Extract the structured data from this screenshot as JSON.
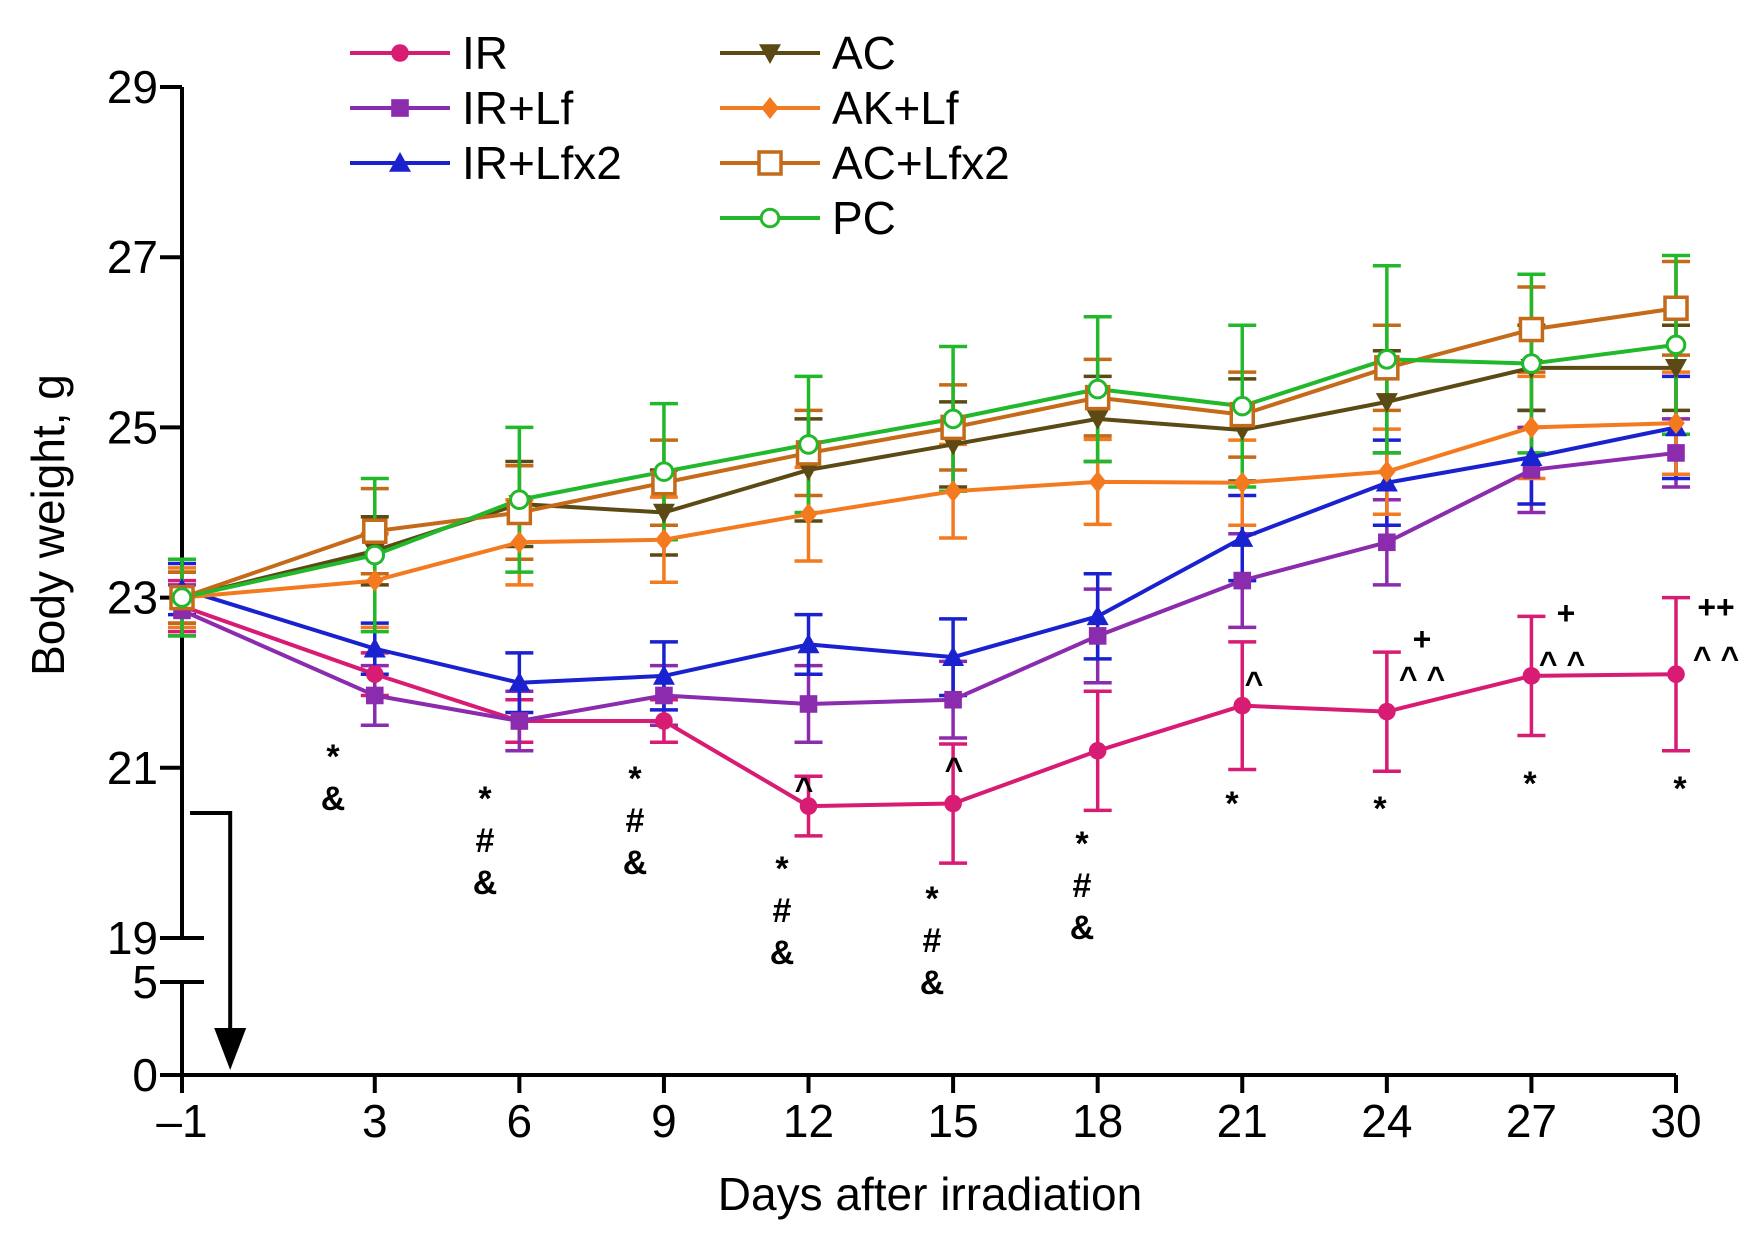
{
  "chart_data": {
    "type": "line",
    "xlabel": "Days after irradiation",
    "ylabel": "Body weight, g",
    "x": [
      -1,
      3,
      6,
      9,
      12,
      15,
      18,
      21,
      24,
      27,
      30
    ],
    "x_tick_labels": [
      "–1",
      "3",
      "6",
      "9",
      "12",
      "15",
      "18",
      "21",
      "24",
      "27",
      "30"
    ],
    "y_upper_ticks": [
      "19",
      "21",
      "23",
      "25",
      "27",
      "29"
    ],
    "y_lower_ticks": [
      "0",
      "5"
    ],
    "y_upper_range": [
      19,
      29
    ],
    "y_lower_range": [
      0,
      5
    ],
    "axis_break": "between 5 and 19",
    "arrow_at_x": 0,
    "grid": false,
    "legend_position": "top",
    "series": [
      {
        "name": "IR",
        "color": "#D81B73",
        "marker": "filled-circle",
        "values": [
          22.9,
          22.1,
          21.55,
          21.55,
          20.55,
          20.58,
          21.2,
          21.73,
          21.66,
          22.08,
          22.1
        ],
        "errors": [
          0.3,
          0.25,
          0.25,
          0.25,
          0.35,
          0.7,
          0.7,
          0.75,
          0.7,
          0.7,
          0.9
        ]
      },
      {
        "name": "IR+Lf",
        "color": "#8B2BAE",
        "marker": "filled-square",
        "values": [
          22.85,
          21.85,
          21.55,
          21.85,
          21.75,
          21.8,
          22.55,
          23.2,
          23.65,
          24.5,
          24.7
        ],
        "errors": [
          0.3,
          0.35,
          0.35,
          0.35,
          0.45,
          0.45,
          0.55,
          0.55,
          0.5,
          0.5,
          0.4
        ]
      },
      {
        "name": "IR+Lfx2",
        "color": "#1A22D0",
        "marker": "filled-triangle",
        "values": [
          23.1,
          22.4,
          22.0,
          22.08,
          22.45,
          22.3,
          22.78,
          23.7,
          24.35,
          24.65,
          25.0
        ],
        "errors": [
          0.3,
          0.3,
          0.35,
          0.4,
          0.35,
          0.45,
          0.5,
          0.5,
          0.5,
          0.55,
          0.6
        ]
      },
      {
        "name": "AC",
        "color": "#5B4A14",
        "marker": "filled-down-triangle",
        "values": [
          23.0,
          23.55,
          24.1,
          24.0,
          24.5,
          24.8,
          25.1,
          24.97,
          25.3,
          25.7,
          25.7
        ],
        "errors": [
          0.3,
          0.4,
          0.5,
          0.5,
          0.6,
          0.5,
          0.5,
          0.6,
          0.6,
          0.5,
          0.5
        ]
      },
      {
        "name": "AK+Lf",
        "color": "#F37A1F",
        "marker": "filled-diamond",
        "values": [
          23.0,
          23.2,
          23.65,
          23.68,
          23.98,
          24.25,
          24.36,
          24.35,
          24.48,
          25.0,
          25.05
        ],
        "errors": [
          0.35,
          0.55,
          0.5,
          0.5,
          0.55,
          0.55,
          0.5,
          0.5,
          0.5,
          0.6,
          0.6
        ]
      },
      {
        "name": "AC+Lfx2",
        "color": "#C46A18",
        "marker": "open-square",
        "values": [
          23.0,
          23.78,
          24.0,
          24.35,
          24.7,
          25.0,
          25.35,
          25.15,
          25.7,
          26.15,
          26.4
        ],
        "errors": [
          0.3,
          0.5,
          0.55,
          0.5,
          0.5,
          0.5,
          0.45,
          0.5,
          0.5,
          0.5,
          0.55
        ]
      },
      {
        "name": "PC",
        "color": "#22B82B",
        "marker": "open-circle",
        "values": [
          23.0,
          23.5,
          24.15,
          24.48,
          24.8,
          25.1,
          25.45,
          25.25,
          25.8,
          25.75,
          25.97
        ],
        "errors": [
          0.45,
          0.9,
          0.85,
          0.8,
          0.8,
          0.85,
          0.85,
          0.95,
          1.1,
          1.05,
          1.05
        ]
      }
    ],
    "annotations": [
      {
        "x": 3,
        "text": "*\n&"
      },
      {
        "x": 6,
        "text": "*\n#\n&"
      },
      {
        "x": 9,
        "text": "*\n#\n&"
      },
      {
        "x": 12,
        "text": "*\n#\n&"
      },
      {
        "x": 15,
        "text": "*\n#\n&"
      },
      {
        "x": 18,
        "text": "*\n#\n&"
      },
      {
        "x": 21,
        "text": "*"
      },
      {
        "x": 24,
        "text": "*"
      },
      {
        "x": 27,
        "text": "*"
      },
      {
        "x": 30,
        "text": "*"
      },
      {
        "x": 12,
        "text": "^"
      },
      {
        "x": 15,
        "text": "^"
      },
      {
        "x": 21,
        "text": "^"
      },
      {
        "x": 24,
        "text": "^ ^"
      },
      {
        "x": 24,
        "text": "+"
      },
      {
        "x": 27,
        "text": "^ ^"
      },
      {
        "x": 27,
        "text": "+"
      },
      {
        "x": 30,
        "text": "^ ^"
      },
      {
        "x": 30,
        "text": "++"
      }
    ]
  }
}
